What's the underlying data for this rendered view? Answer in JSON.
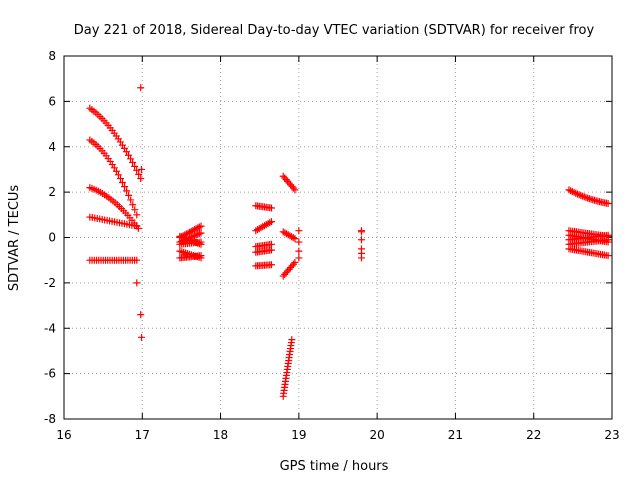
{
  "chart_data": {
    "type": "scatter",
    "title": "Day 221 of 2018, Sidereal Day-to-day VTEC variation (SDTVAR) for receiver froy",
    "xlabel": "GPS time / hours",
    "ylabel": "SDTVAR / TECUs",
    "xlim": [
      16,
      23
    ],
    "ylim": [
      -8,
      8
    ],
    "xticks": [
      16,
      17,
      18,
      19,
      20,
      21,
      22,
      23
    ],
    "yticks": [
      -8,
      -6,
      -4,
      -2,
      0,
      2,
      4,
      6,
      8
    ],
    "x_tick_labels": [
      "16",
      "17",
      "18",
      "19",
      "20",
      "21",
      "22",
      "23"
    ],
    "y_tick_labels": [
      "-8",
      "-6",
      "-4",
      "-2",
      "0",
      "2",
      "4",
      "6",
      "8"
    ],
    "grid": true,
    "marker": "plus",
    "marker_color": "#ff0000",
    "series": [
      {
        "name": "arc-a",
        "segments": [
          {
            "x": [
              16.33,
              16.98
            ],
            "y": [
              5.7,
              2.6
            ],
            "n": 26,
            "curve": 0.5
          }
        ]
      },
      {
        "name": "arc-b",
        "segments": [
          {
            "x": [
              16.33,
              16.93
            ],
            "y": [
              4.3,
              1.0
            ],
            "n": 24,
            "curve": 0.6
          }
        ]
      },
      {
        "name": "arc-c",
        "segments": [
          {
            "x": [
              16.33,
              16.95
            ],
            "y": [
              2.2,
              0.4
            ],
            "n": 24,
            "curve": 0.6
          }
        ]
      },
      {
        "name": "arc-d",
        "segments": [
          {
            "x": [
              16.33,
              16.93
            ],
            "y": [
              0.9,
              0.5
            ],
            "n": 20,
            "curve": 0
          }
        ]
      },
      {
        "name": "arc-e",
        "segments": [
          {
            "x": [
              16.33,
              16.93
            ],
            "y": [
              -1.0,
              -1.0
            ],
            "n": 22,
            "curve": -0.15
          }
        ]
      },
      {
        "name": "late-17",
        "points": [
          [
            16.98,
            6.6
          ],
          [
            16.99,
            3.0
          ],
          [
            16.93,
            -2.0
          ],
          [
            16.98,
            -3.4
          ],
          [
            16.99,
            -4.4
          ]
        ]
      },
      {
        "name": "cluster-17.6",
        "segments": [
          {
            "x": [
              17.48,
              17.75
            ],
            "y": [
              0.0,
              0.5
            ],
            "n": 14,
            "curve": 0
          },
          {
            "x": [
              17.48,
              17.75
            ],
            "y": [
              -0.2,
              0.2
            ],
            "n": 14,
            "curve": 0
          },
          {
            "x": [
              17.48,
              17.75
            ],
            "y": [
              0.05,
              -0.3
            ],
            "n": 14,
            "curve": 0
          },
          {
            "x": [
              17.48,
              17.75
            ],
            "y": [
              -0.3,
              -0.2
            ],
            "n": 12,
            "curve": 0
          },
          {
            "x": [
              17.48,
              17.75
            ],
            "y": [
              -0.9,
              -0.8
            ],
            "n": 14,
            "curve": 0
          },
          {
            "x": [
              17.48,
              17.75
            ],
            "y": [
              -0.6,
              -0.9
            ],
            "n": 12,
            "curve": 0
          }
        ]
      },
      {
        "name": "cluster-18.5",
        "segments": [
          {
            "x": [
              18.45,
              18.65
            ],
            "y": [
              1.4,
              1.3
            ],
            "n": 10,
            "curve": 0
          },
          {
            "x": [
              18.45,
              18.65
            ],
            "y": [
              0.3,
              0.7
            ],
            "n": 10,
            "curve": 0
          },
          {
            "x": [
              18.45,
              18.65
            ],
            "y": [
              -0.4,
              -0.3
            ],
            "n": 10,
            "curve": 0
          },
          {
            "x": [
              18.45,
              18.65
            ],
            "y": [
              -0.65,
              -0.55
            ],
            "n": 10,
            "curve": 0
          },
          {
            "x": [
              18.45,
              18.65
            ],
            "y": [
              -1.25,
              -1.2
            ],
            "n": 10,
            "curve": 0
          }
        ]
      },
      {
        "name": "cluster-18.9",
        "segments": [
          {
            "x": [
              18.8,
              18.95
            ],
            "y": [
              2.7,
              2.1
            ],
            "n": 9,
            "curve": 0
          },
          {
            "x": [
              18.8,
              18.95
            ],
            "y": [
              0.25,
              -0.05
            ],
            "n": 8,
            "curve": 0
          },
          {
            "x": [
              18.8,
              18.95
            ],
            "y": [
              -1.7,
              -1.1
            ],
            "n": 9,
            "curve": 0
          },
          {
            "x": [
              18.8,
              18.91
            ],
            "y": [
              -7.0,
              -4.5
            ],
            "n": 20,
            "curve": 0
          }
        ]
      },
      {
        "name": "cluster-19.0",
        "points": [
          [
            19.0,
            0.3
          ],
          [
            19.0,
            -0.2
          ],
          [
            19.0,
            -0.6
          ],
          [
            19.0,
            -0.9
          ]
        ]
      },
      {
        "name": "cluster-19.8",
        "points": [
          [
            19.8,
            0.3
          ],
          [
            19.8,
            0.25
          ],
          [
            19.8,
            -0.1
          ],
          [
            19.8,
            -0.5
          ],
          [
            19.8,
            -0.7
          ],
          [
            19.8,
            -0.9
          ]
        ]
      },
      {
        "name": "cluster-22.7",
        "segments": [
          {
            "x": [
              22.45,
              22.95
            ],
            "y": [
              2.1,
              1.5
            ],
            "n": 24,
            "curve": -0.5
          },
          {
            "x": [
              22.45,
              22.95
            ],
            "y": [
              0.3,
              0.05
            ],
            "n": 22,
            "curve": 0
          },
          {
            "x": [
              22.45,
              22.95
            ],
            "y": [
              0.1,
              -0.2
            ],
            "n": 22,
            "curve": 0
          },
          {
            "x": [
              22.45,
              22.95
            ],
            "y": [
              -0.1,
              0.1
            ],
            "n": 22,
            "curve": 0
          },
          {
            "x": [
              22.45,
              22.95
            ],
            "y": [
              -0.3,
              -0.1
            ],
            "n": 22,
            "curve": 0
          },
          {
            "x": [
              22.45,
              22.95
            ],
            "y": [
              -0.5,
              -0.8
            ],
            "n": 22,
            "curve": 0
          }
        ]
      }
    ]
  }
}
